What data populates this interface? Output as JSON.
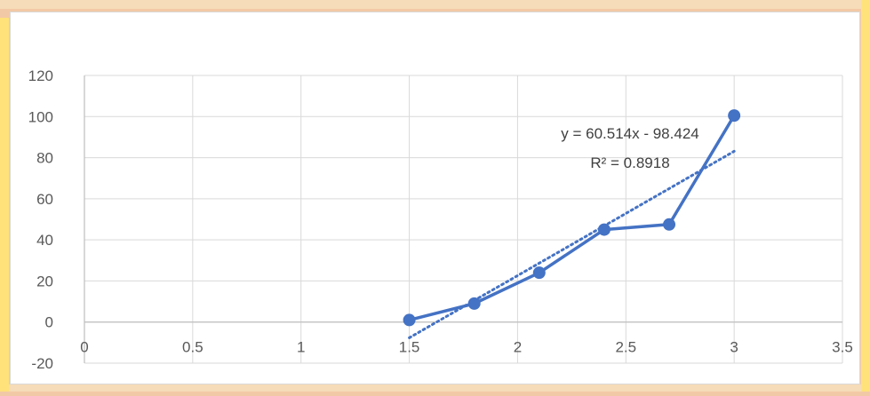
{
  "chart_data": {
    "type": "scatter",
    "title": "",
    "xlabel": "",
    "ylabel": "",
    "xlim": [
      0,
      3.5
    ],
    "ylim": [
      -20,
      120
    ],
    "x_ticks": [
      0,
      0.5,
      1,
      1.5,
      2,
      2.5,
      3,
      3.5
    ],
    "y_ticks": [
      -20,
      0,
      20,
      40,
      60,
      80,
      100,
      120
    ],
    "x_tick_labels": [
      "0",
      "0.5",
      "1",
      "1.5",
      "2",
      "2.5",
      "3",
      "3.5"
    ],
    "y_tick_labels": [
      "-20",
      "0",
      "20",
      "40",
      "60",
      "80",
      "100",
      "120"
    ],
    "grid": "vertical and horizontal major gridlines",
    "legend": "none",
    "series": [
      {
        "x": [
          1.5,
          1.8,
          2.1,
          2.4,
          2.7,
          3.0
        ],
        "y": [
          1,
          9,
          24,
          45,
          47.5,
          100.5
        ],
        "color": "#4472c4",
        "style": "line with circle markers"
      }
    ],
    "trendline": {
      "type": "linear",
      "slope": 60.514,
      "intercept": -98.424,
      "x_range": [
        1.5,
        3.0
      ],
      "color": "#4472c4",
      "style": "dotted",
      "equation_label": "y = 60.514x - 98.424",
      "r2_label": "R² = 0.8918"
    }
  },
  "colors": {
    "background_watermark": "#f2c9a6",
    "watermark_accent": "#ffe27a",
    "axis_text": "#595959",
    "gridline": "#d9d9d9"
  }
}
